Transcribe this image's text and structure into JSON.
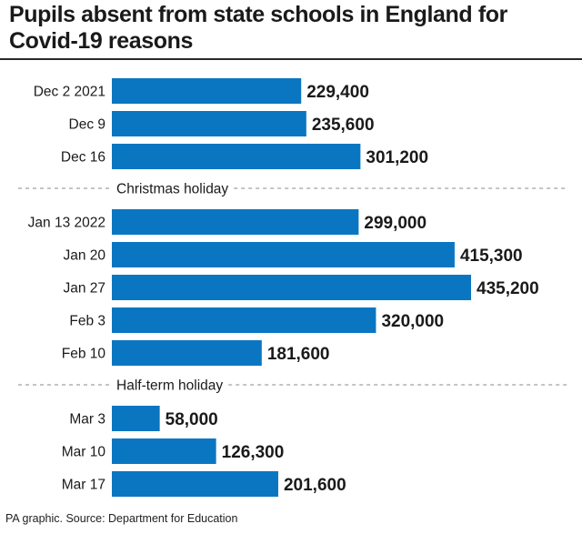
{
  "chart_data": {
    "type": "bar",
    "orientation": "horizontal",
    "title": "Pupils absent from state schools in England for Covid-19 reasons",
    "categories": [
      "Dec 2 2021",
      "Dec 9",
      "Dec 16",
      "Jan 13 2022",
      "Jan 20",
      "Jan 27",
      "Feb 3",
      "Feb 10",
      "Mar 3",
      "Mar 10",
      "Mar 17"
    ],
    "values": [
      229400,
      235600,
      301200,
      299000,
      415300,
      435200,
      320000,
      181600,
      58000,
      126300,
      201600
    ],
    "value_labels": [
      "229,400",
      "235,600",
      "301,200",
      "299,000",
      "415,300",
      "435,200",
      "320,000",
      "181,600",
      "58,000",
      "126,300",
      "201,600"
    ],
    "xlim": [
      0,
      435200
    ],
    "xlabel": "",
    "ylabel": "",
    "grid": false,
    "bar_color": "#0a76c2",
    "annotations": [
      {
        "text": "Christmas holiday",
        "after_category": "Dec 16"
      },
      {
        "text": "Half-term holiday",
        "after_category": "Feb 10"
      }
    ]
  },
  "source": "PA graphic. Source: Department for Education"
}
